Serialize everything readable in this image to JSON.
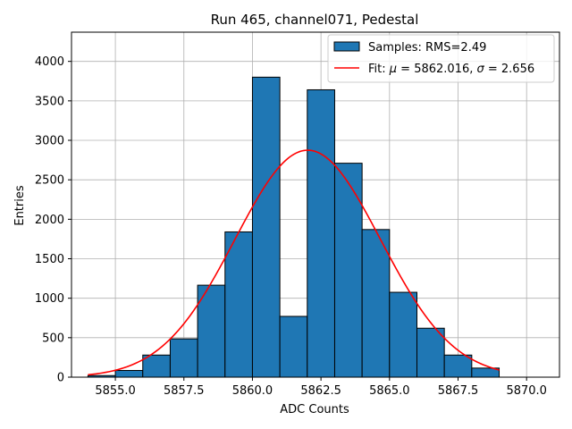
{
  "chart_data": {
    "type": "bar",
    "title": "Run 465, channel071, Pedestal",
    "xlabel": "ADC Counts",
    "ylabel": "Entries",
    "xlim": [
      5853.4,
      5871.2
    ],
    "ylim": [
      0,
      4370
    ],
    "grid": true,
    "legend_position": "top-right",
    "xticks": [
      5855.0,
      5857.5,
      5860.0,
      5862.5,
      5865.0,
      5867.5,
      5870.0
    ],
    "xtick_labels": [
      "5855.0",
      "5857.5",
      "5860.0",
      "5862.5",
      "5865.0",
      "5867.5",
      "5870.0"
    ],
    "yticks": [
      0,
      500,
      1000,
      1500,
      2000,
      2500,
      3000,
      3500,
      4000
    ],
    "yticks_labels": [
      "0",
      "500",
      "1000",
      "1500",
      "2000",
      "2500",
      "3000",
      "3500",
      "4000"
    ],
    "bin_edges": [
      5854,
      5855,
      5856,
      5857,
      5858,
      5859,
      5860,
      5861,
      5862,
      5863,
      5864,
      5865,
      5866,
      5867,
      5868,
      5869
    ],
    "series": [
      {
        "name": "Samples: RMS=2.49",
        "kind": "histogram",
        "color": "#1f77b4",
        "edgecolor": "#000000",
        "values": [
          20,
          85,
          280,
          485,
          1165,
          1840,
          3800,
          770,
          3640,
          2710,
          1870,
          1075,
          620,
          280,
          115
        ]
      },
      {
        "name_prefix": "Fit: ",
        "mu_symbol": "μ",
        "mu_value": " = 5862.016, ",
        "sigma_symbol": "σ",
        "sigma_value": " = 2.656",
        "kind": "gaussian_fit",
        "color": "#ff0000",
        "mu": 5862.016,
        "sigma": 2.656,
        "amplitude": 2875,
        "x_range": [
          5854,
          5869
        ]
      }
    ]
  }
}
